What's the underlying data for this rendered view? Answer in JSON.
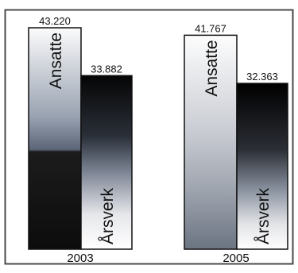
{
  "chart_data": {
    "type": "bar",
    "categories": [
      "2003",
      "2005"
    ],
    "series": [
      {
        "name": "Ansatte",
        "values": [
          43220,
          41767
        ]
      },
      {
        "name": "Årsverk",
        "values": [
          33882,
          32363
        ]
      }
    ],
    "value_labels": [
      [
        "43.220",
        "41.767"
      ],
      [
        "33.882",
        "32.363"
      ]
    ],
    "legend": "inside-bars",
    "grid": false
  },
  "colors": {
    "frame": "#4a4a4a",
    "bar_outline": "#111111",
    "ansatte_top": "#ffffff",
    "ansatte_bottom": "#3c4658",
    "arsverk_top": "#0a0a0a",
    "arsverk_bottom": "#f4f4f4"
  }
}
